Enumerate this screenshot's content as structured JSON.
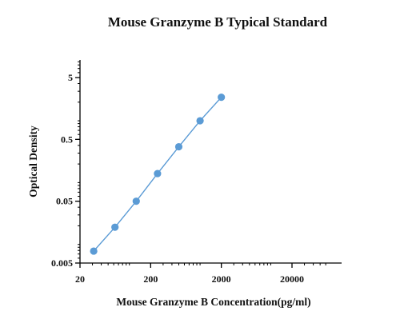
{
  "chart_data": {
    "type": "scatter",
    "title": "Mouse Granzyme B Typical Standard",
    "xlabel": "Mouse Granzyme B Concentration(pg/ml)",
    "ylabel": "Optical Density",
    "x_scale": "log",
    "y_scale": "log",
    "xlim": [
      20,
      60000
    ],
    "ylim": [
      0.005,
      10
    ],
    "x_ticks": [
      20,
      200,
      2000,
      20000
    ],
    "x_tick_labels": [
      "20",
      "200",
      "2000",
      "20000"
    ],
    "y_ticks": [
      0.005,
      0.05,
      0.5,
      5
    ],
    "y_tick_labels": [
      "0.005",
      "0.05",
      "0.5",
      "5"
    ],
    "grid": false,
    "legend": "none",
    "series": [
      {
        "color": "#5b9bd5",
        "x": [
          31.25,
          62.5,
          125,
          250,
          500,
          1000,
          2000
        ],
        "y": [
          0.0078,
          0.019,
          0.05,
          0.14,
          0.38,
          1.0,
          2.4
        ],
        "fit": "line"
      }
    ]
  }
}
